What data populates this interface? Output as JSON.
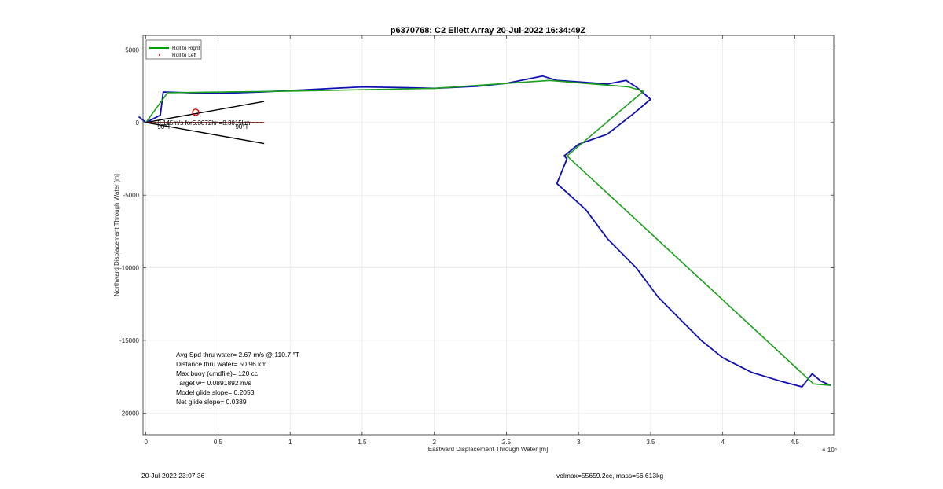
{
  "chart_data": {
    "type": "line",
    "title": "p6370768: C2 Ellett Array 20-Jul-2022 16:34:49Z",
    "xlabel": "Eastward Displacement Through Water [m]",
    "ylabel": "Northward Displacement Through Water [m]",
    "x_exponent_label": "× 10⁴",
    "xlim": [
      -0.02,
      4.77
    ],
    "ylim": [
      -21500,
      6000
    ],
    "x_ticks": [
      0,
      0.5,
      1,
      1.5,
      2,
      2.5,
      3,
      3.5,
      4,
      4.5
    ],
    "x_tick_labels": [
      "0",
      "0.5",
      "1",
      "1.5",
      "2",
      "2.5",
      "3",
      "3.5",
      "4",
      "4.5"
    ],
    "y_ticks": [
      5000,
      0,
      -5000,
      -10000,
      -15000,
      -20000
    ],
    "y_tick_labels": [
      "5000",
      "0",
      "-5000",
      "-10000",
      "-15000",
      "-20000"
    ],
    "grid": true,
    "legend_position": "top-left",
    "legend": [
      {
        "label": "Roll to Right",
        "color": "#00a000",
        "style": "line"
      },
      {
        "label": "Roll to Left",
        "color": "#cc0000",
        "style": "dot"
      }
    ],
    "series": [
      {
        "name": "Roll to Right",
        "color": "#1aa01a",
        "x": [
          0,
          0.15,
          0.95,
          2.0,
          2.8,
          3.35,
          3.45,
          2.92,
          4.63,
          4.75
        ],
        "y": [
          0,
          2050,
          2150,
          2350,
          2900,
          2450,
          2150,
          -2300,
          -18000,
          -18100
        ]
      },
      {
        "name": "",
        "color": "#1010b0",
        "x": [
          -0.05,
          0.0,
          0.1,
          0.12,
          0.3,
          0.5,
          0.8,
          1.0,
          1.3,
          1.5,
          1.8,
          2.0,
          2.3,
          2.5,
          2.75,
          2.85,
          3.0,
          3.2,
          3.33,
          3.4,
          3.5,
          3.38,
          3.2,
          3.0,
          2.9,
          2.92,
          2.85,
          3.05,
          3.2,
          3.4,
          3.55,
          3.7,
          3.85,
          4.0,
          4.2,
          4.4,
          4.55,
          4.62,
          4.68,
          4.75
        ],
        "y": [
          400,
          0,
          500,
          2100,
          2050,
          2000,
          2100,
          2200,
          2350,
          2450,
          2400,
          2350,
          2500,
          2700,
          3200,
          2900,
          2800,
          2650,
          2900,
          2450,
          1600,
          600,
          -800,
          -1500,
          -2300,
          -2500,
          -4200,
          -6000,
          -8000,
          -10000,
          -12000,
          -13500,
          -15000,
          -16200,
          -17200,
          -17800,
          -18200,
          -17300,
          -17800,
          -18100
        ]
      }
    ],
    "annotations": {
      "speed_label": "0.145m/s for5.3072hr =8.3015km",
      "heading_label_left": "90°T",
      "heading_label_right": "90°T"
    },
    "stats": [
      "Avg Spd thru water=  2.67 m/s @ 110.7 °T",
      "Distance thru water= 50.96 km",
      "Max buoy (cmdfile)= 120 cc",
      "Target w= 0.0891892 m/s",
      "Model glide slope= 0.2053",
      "Net glide slope= 0.0389"
    ]
  },
  "footer": {
    "left": "20-Jul-2022 23:07:36",
    "right": "volmax=55659.2cc, mass=56.613kg"
  }
}
